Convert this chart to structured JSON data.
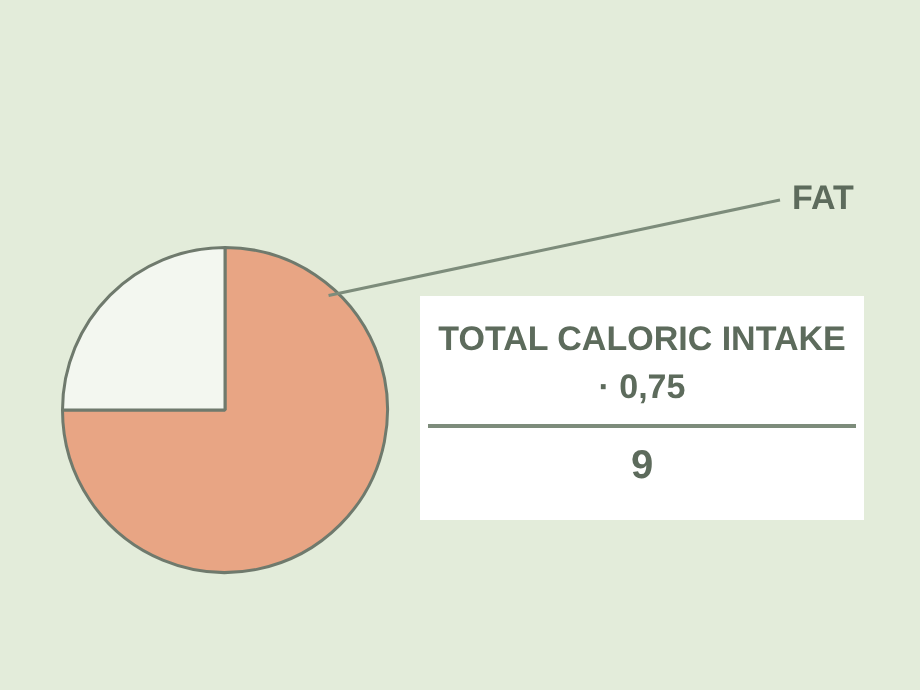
{
  "chart_data": {
    "type": "pie",
    "categories": [
      "FAT",
      null
    ],
    "values": [
      75,
      25
    ],
    "colors": [
      "#e8a584",
      "#f3f7f0"
    ],
    "annotations": [
      "TOTAL CALORIC INTAKE · 0,75",
      "9"
    ]
  }
}
